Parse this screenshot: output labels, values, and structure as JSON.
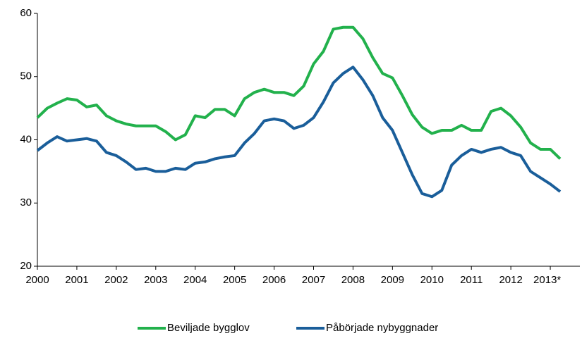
{
  "chart_data": {
    "type": "line",
    "x": [
      2000,
      2000.25,
      2000.5,
      2000.75,
      2001,
      2001.25,
      2001.5,
      2001.75,
      2002,
      2002.25,
      2002.5,
      2002.75,
      2003,
      2003.25,
      2003.5,
      2003.75,
      2004,
      2004.25,
      2004.5,
      2004.75,
      2005,
      2005.25,
      2005.5,
      2005.75,
      2006,
      2006.25,
      2006.5,
      2006.75,
      2007,
      2007.25,
      2007.5,
      2007.75,
      2008,
      2008.25,
      2008.5,
      2008.75,
      2009,
      2009.25,
      2009.5,
      2009.75,
      2010,
      2010.25,
      2010.5,
      2010.75,
      2011,
      2011.25,
      2011.5,
      2011.75,
      2012,
      2012.25,
      2012.5,
      2012.75,
      2013,
      2013.25
    ],
    "series": [
      {
        "name": "Beviljade bygglov",
        "color": "#22b14c",
        "values": [
          43.5,
          45,
          45.8,
          46.5,
          46.3,
          45.2,
          45.5,
          43.8,
          43,
          42.5,
          42.2,
          42.2,
          42.2,
          41.3,
          40,
          40.8,
          43.8,
          43.5,
          44.8,
          44.8,
          43.8,
          46.5,
          47.5,
          48,
          47.5,
          47.5,
          47,
          48.5,
          52,
          54,
          57.5,
          57.8,
          57.8,
          56,
          53,
          50.5,
          49.8,
          47,
          44,
          42,
          41,
          41.5,
          41.5,
          42.3,
          41.5,
          41.5,
          44.5,
          45,
          43.8,
          42,
          39.5,
          38.5,
          38.5,
          37
        ]
      },
      {
        "name": "Påbörjade nybyggnader",
        "color": "#1a5e9a",
        "values": [
          38.3,
          39.5,
          40.5,
          39.8,
          40,
          40.2,
          39.8,
          38,
          37.5,
          36.5,
          35.3,
          35.5,
          35,
          35,
          35.5,
          35.3,
          36.3,
          36.5,
          37,
          37.3,
          37.5,
          39.5,
          41,
          43,
          43.3,
          43,
          41.8,
          42.3,
          43.5,
          46,
          49,
          50.5,
          51.5,
          49.5,
          47,
          43.5,
          41.5,
          38,
          34.5,
          31.5,
          31,
          32,
          36,
          37.5,
          38.5,
          38,
          38.5,
          38.8,
          38,
          37.5,
          35,
          34,
          33,
          31.8
        ]
      }
    ],
    "xlim": [
      2000,
      2013.75
    ],
    "xticks": [
      2000,
      2001,
      2002,
      2003,
      2004,
      2005,
      2006,
      2007,
      2008,
      2009,
      2010,
      2011,
      2012,
      {
        "value": 2013,
        "label": "2013*"
      }
    ],
    "ylim": [
      20,
      60
    ],
    "yticks": [
      20,
      30,
      40,
      50,
      60
    ],
    "grid": false,
    "legend": "bottom"
  }
}
